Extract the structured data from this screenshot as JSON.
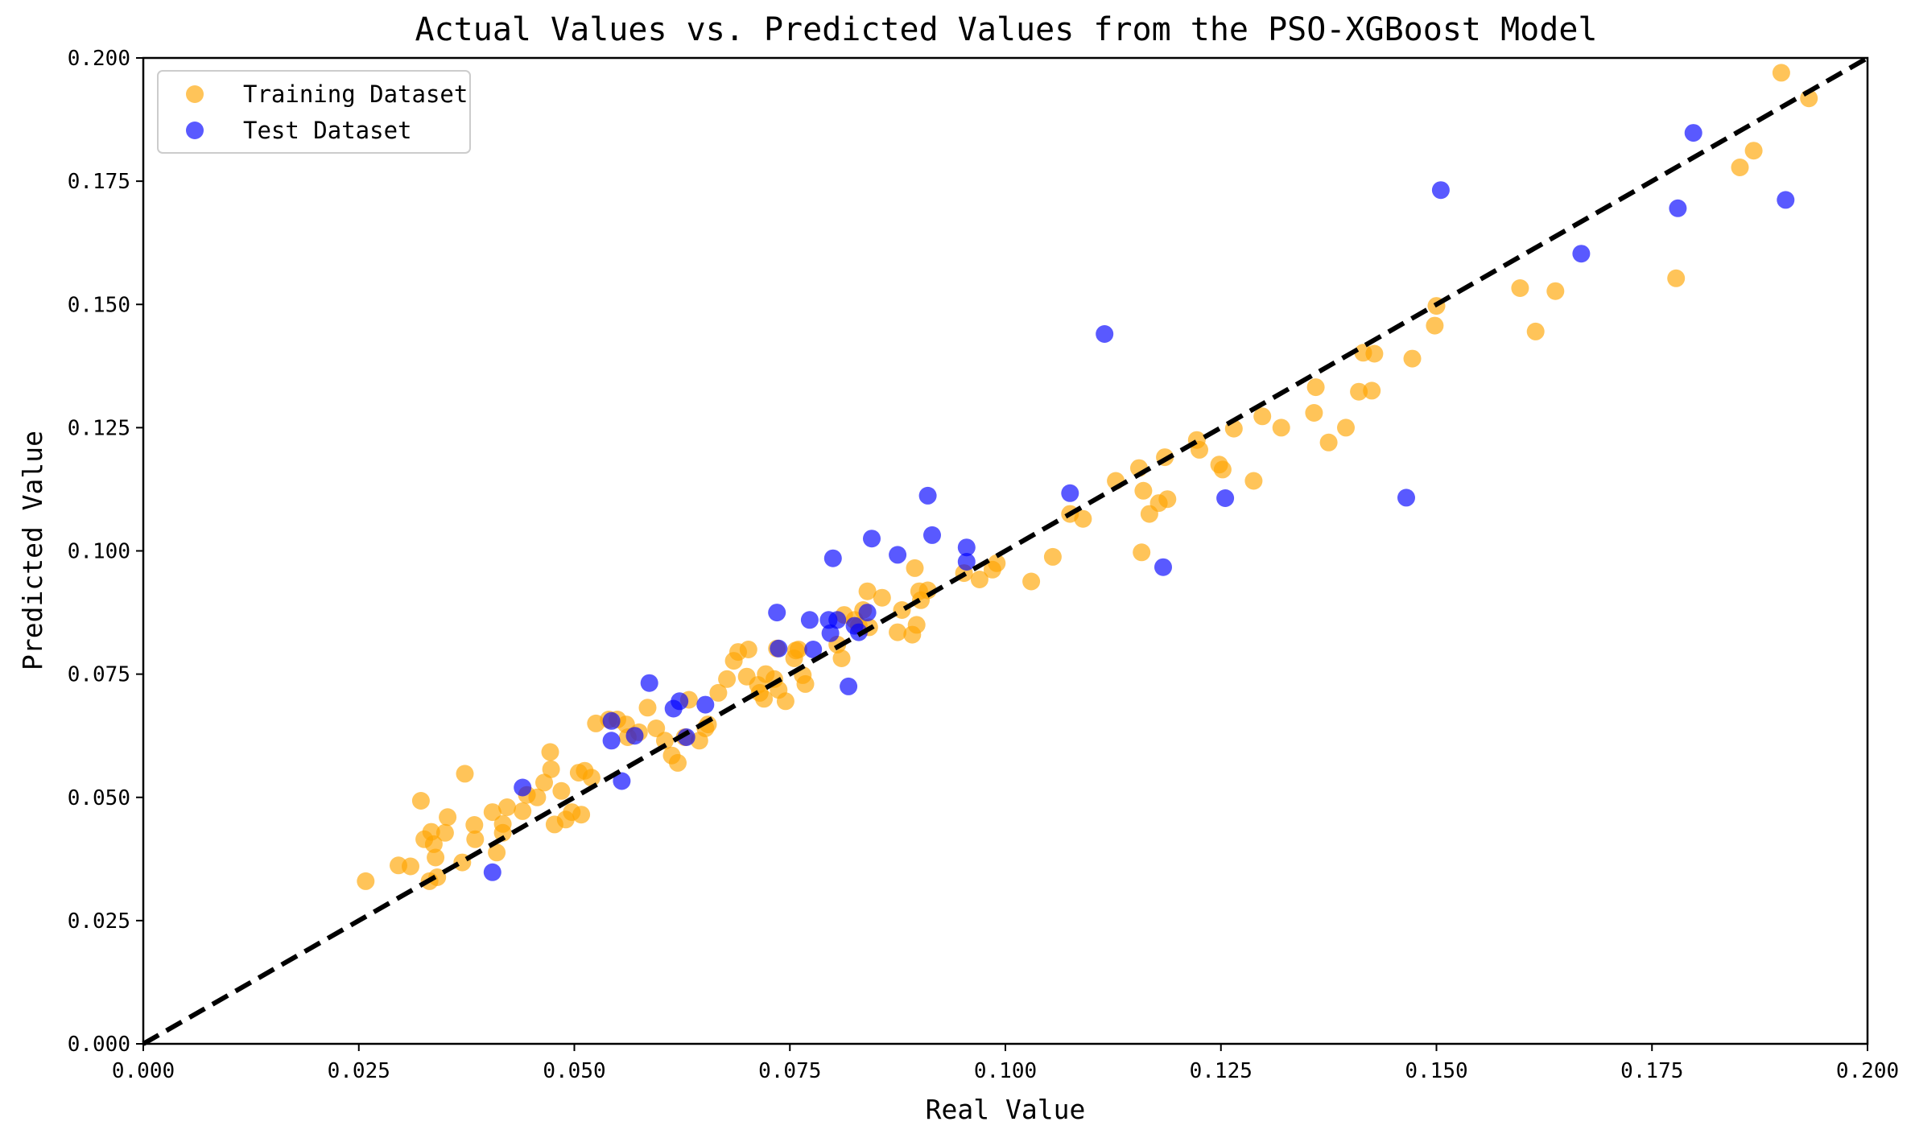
{
  "chart_data": {
    "type": "scatter",
    "title": "Actual Values vs. Predicted Values from the PSO-XGBoost Model",
    "xlabel": "Real Value",
    "ylabel": "Predicted Value",
    "xlim": [
      0,
      0.2
    ],
    "ylim": [
      0,
      0.2
    ],
    "xticks": [
      "0.000",
      "0.025",
      "0.050",
      "0.075",
      "0.100",
      "0.125",
      "0.150",
      "0.175",
      "0.200"
    ],
    "yticks": [
      "0.000",
      "0.025",
      "0.050",
      "0.075",
      "0.100",
      "0.125",
      "0.150",
      "0.175",
      "0.200"
    ],
    "grid": false,
    "legend_position": "top-left",
    "reference_line": {
      "style": "dashed",
      "color": "#000000",
      "from": [
        0,
        0
      ],
      "to": [
        0.2,
        0.2
      ]
    },
    "series": [
      {
        "name": "Training Dataset",
        "color": "#FFA500",
        "opacity": 0.65,
        "points": [
          [
            0.0258,
            0.033
          ],
          [
            0.0296,
            0.0362
          ],
          [
            0.031,
            0.036
          ],
          [
            0.0322,
            0.0493
          ],
          [
            0.0326,
            0.0415
          ],
          [
            0.0332,
            0.033
          ],
          [
            0.0334,
            0.043
          ],
          [
            0.0337,
            0.0405
          ],
          [
            0.0339,
            0.0378
          ],
          [
            0.0341,
            0.0338
          ],
          [
            0.035,
            0.0428
          ],
          [
            0.0353,
            0.046
          ],
          [
            0.037,
            0.0368
          ],
          [
            0.0373,
            0.0548
          ],
          [
            0.0384,
            0.0444
          ],
          [
            0.0385,
            0.0415
          ],
          [
            0.0405,
            0.047
          ],
          [
            0.041,
            0.0388
          ],
          [
            0.0417,
            0.0446
          ],
          [
            0.0417,
            0.0428
          ],
          [
            0.0422,
            0.048
          ],
          [
            0.044,
            0.0472
          ],
          [
            0.0445,
            0.0505
          ],
          [
            0.0457,
            0.05
          ],
          [
            0.0465,
            0.053
          ],
          [
            0.0472,
            0.0592
          ],
          [
            0.0473,
            0.0557
          ],
          [
            0.0477,
            0.0445
          ],
          [
            0.0485,
            0.0513
          ],
          [
            0.049,
            0.0455
          ],
          [
            0.0497,
            0.047
          ],
          [
            0.0505,
            0.055
          ],
          [
            0.0508,
            0.0465
          ],
          [
            0.0512,
            0.0554
          ],
          [
            0.052,
            0.054
          ],
          [
            0.0525,
            0.065
          ],
          [
            0.054,
            0.0658
          ],
          [
            0.055,
            0.0658
          ],
          [
            0.056,
            0.0648
          ],
          [
            0.0562,
            0.0622
          ],
          [
            0.0575,
            0.0632
          ],
          [
            0.0585,
            0.0682
          ],
          [
            0.0595,
            0.064
          ],
          [
            0.0605,
            0.0615
          ],
          [
            0.0613,
            0.0585
          ],
          [
            0.062,
            0.057
          ],
          [
            0.0628,
            0.0622
          ],
          [
            0.0633,
            0.0698
          ],
          [
            0.0645,
            0.0615
          ],
          [
            0.0652,
            0.064
          ],
          [
            0.0655,
            0.0648
          ],
          [
            0.0667,
            0.0712
          ],
          [
            0.0677,
            0.074
          ],
          [
            0.0685,
            0.0777
          ],
          [
            0.069,
            0.0795
          ],
          [
            0.07,
            0.0745
          ],
          [
            0.0702,
            0.08
          ],
          [
            0.0713,
            0.0728
          ],
          [
            0.0715,
            0.0712
          ],
          [
            0.072,
            0.07
          ],
          [
            0.0722,
            0.075
          ],
          [
            0.0732,
            0.074
          ],
          [
            0.0737,
            0.0718
          ],
          [
            0.0745,
            0.0695
          ],
          [
            0.0755,
            0.0782
          ],
          [
            0.0757,
            0.0798
          ],
          [
            0.076,
            0.08
          ],
          [
            0.0765,
            0.0748
          ],
          [
            0.0768,
            0.073
          ],
          [
            0.0805,
            0.081
          ],
          [
            0.081,
            0.0782
          ],
          [
            0.0813,
            0.087
          ],
          [
            0.0825,
            0.086
          ],
          [
            0.083,
            0.0848
          ],
          [
            0.0835,
            0.088
          ],
          [
            0.084,
            0.0918
          ],
          [
            0.0842,
            0.0845
          ],
          [
            0.0857,
            0.0905
          ],
          [
            0.0875,
            0.0835
          ],
          [
            0.088,
            0.088
          ],
          [
            0.0892,
            0.083
          ],
          [
            0.0895,
            0.0965
          ],
          [
            0.0897,
            0.085
          ],
          [
            0.09,
            0.0918
          ],
          [
            0.0902,
            0.09
          ],
          [
            0.091,
            0.092
          ],
          [
            0.0952,
            0.0955
          ],
          [
            0.097,
            0.0942
          ],
          [
            0.0985,
            0.0962
          ],
          [
            0.099,
            0.0975
          ],
          [
            0.103,
            0.0938
          ],
          [
            0.1055,
            0.0988
          ],
          [
            0.1075,
            0.1075
          ],
          [
            0.109,
            0.1065
          ],
          [
            0.1128,
            0.1142
          ],
          [
            0.1155,
            0.1168
          ],
          [
            0.1158,
            0.0997
          ],
          [
            0.116,
            0.1122
          ],
          [
            0.1167,
            0.1075
          ],
          [
            0.1178,
            0.1097
          ],
          [
            0.1185,
            0.119
          ],
          [
            0.1188,
            0.1105
          ],
          [
            0.1222,
            0.1225
          ],
          [
            0.1225,
            0.1205
          ],
          [
            0.1248,
            0.1175
          ],
          [
            0.1252,
            0.1165
          ],
          [
            0.1265,
            0.1248
          ],
          [
            0.1288,
            0.1142
          ],
          [
            0.1298,
            0.1273
          ],
          [
            0.132,
            0.125
          ],
          [
            0.1358,
            0.128
          ],
          [
            0.136,
            0.1332
          ],
          [
            0.1375,
            0.122
          ],
          [
            0.1395,
            0.125
          ],
          [
            0.141,
            0.1323
          ],
          [
            0.1415,
            0.1402
          ],
          [
            0.1425,
            0.1325
          ],
          [
            0.1428,
            0.14
          ],
          [
            0.1472,
            0.139
          ],
          [
            0.1498,
            0.1457
          ],
          [
            0.15,
            0.1497
          ],
          [
            0.1597,
            0.1533
          ],
          [
            0.1615,
            0.1445
          ],
          [
            0.1638,
            0.1527
          ],
          [
            0.1778,
            0.1553
          ],
          [
            0.1852,
            0.1778
          ],
          [
            0.1868,
            0.1812
          ],
          [
            0.19,
            0.197
          ],
          [
            0.1932,
            0.1918
          ],
          [
            0.0735,
            0.0802
          ]
        ]
      },
      {
        "name": "Test Dataset",
        "color": "#0000FF",
        "opacity": 0.65,
        "points": [
          [
            0.0405,
            0.0348
          ],
          [
            0.044,
            0.052
          ],
          [
            0.0543,
            0.0615
          ],
          [
            0.0543,
            0.0655
          ],
          [
            0.0555,
            0.0533
          ],
          [
            0.057,
            0.0625
          ],
          [
            0.0587,
            0.0732
          ],
          [
            0.0615,
            0.068
          ],
          [
            0.0622,
            0.0695
          ],
          [
            0.063,
            0.0622
          ],
          [
            0.0652,
            0.0688
          ],
          [
            0.0735,
            0.0875
          ],
          [
            0.0737,
            0.0802
          ],
          [
            0.0773,
            0.086
          ],
          [
            0.0777,
            0.08
          ],
          [
            0.0795,
            0.086
          ],
          [
            0.0797,
            0.0833
          ],
          [
            0.08,
            0.0985
          ],
          [
            0.0805,
            0.086
          ],
          [
            0.0818,
            0.0725
          ],
          [
            0.0825,
            0.0848
          ],
          [
            0.083,
            0.0835
          ],
          [
            0.084,
            0.0875
          ],
          [
            0.0845,
            0.1025
          ],
          [
            0.0875,
            0.0992
          ],
          [
            0.091,
            0.1112
          ],
          [
            0.0915,
            0.1032
          ],
          [
            0.0955,
            0.1007
          ],
          [
            0.0955,
            0.0978
          ],
          [
            0.1075,
            0.1117
          ],
          [
            0.1115,
            0.144
          ],
          [
            0.1183,
            0.0967
          ],
          [
            0.1255,
            0.1107
          ],
          [
            0.1465,
            0.1108
          ],
          [
            0.1505,
            0.1732
          ],
          [
            0.1668,
            0.1603
          ],
          [
            0.178,
            0.1695
          ],
          [
            0.1798,
            0.1848
          ],
          [
            0.1905,
            0.1712
          ]
        ]
      }
    ]
  }
}
